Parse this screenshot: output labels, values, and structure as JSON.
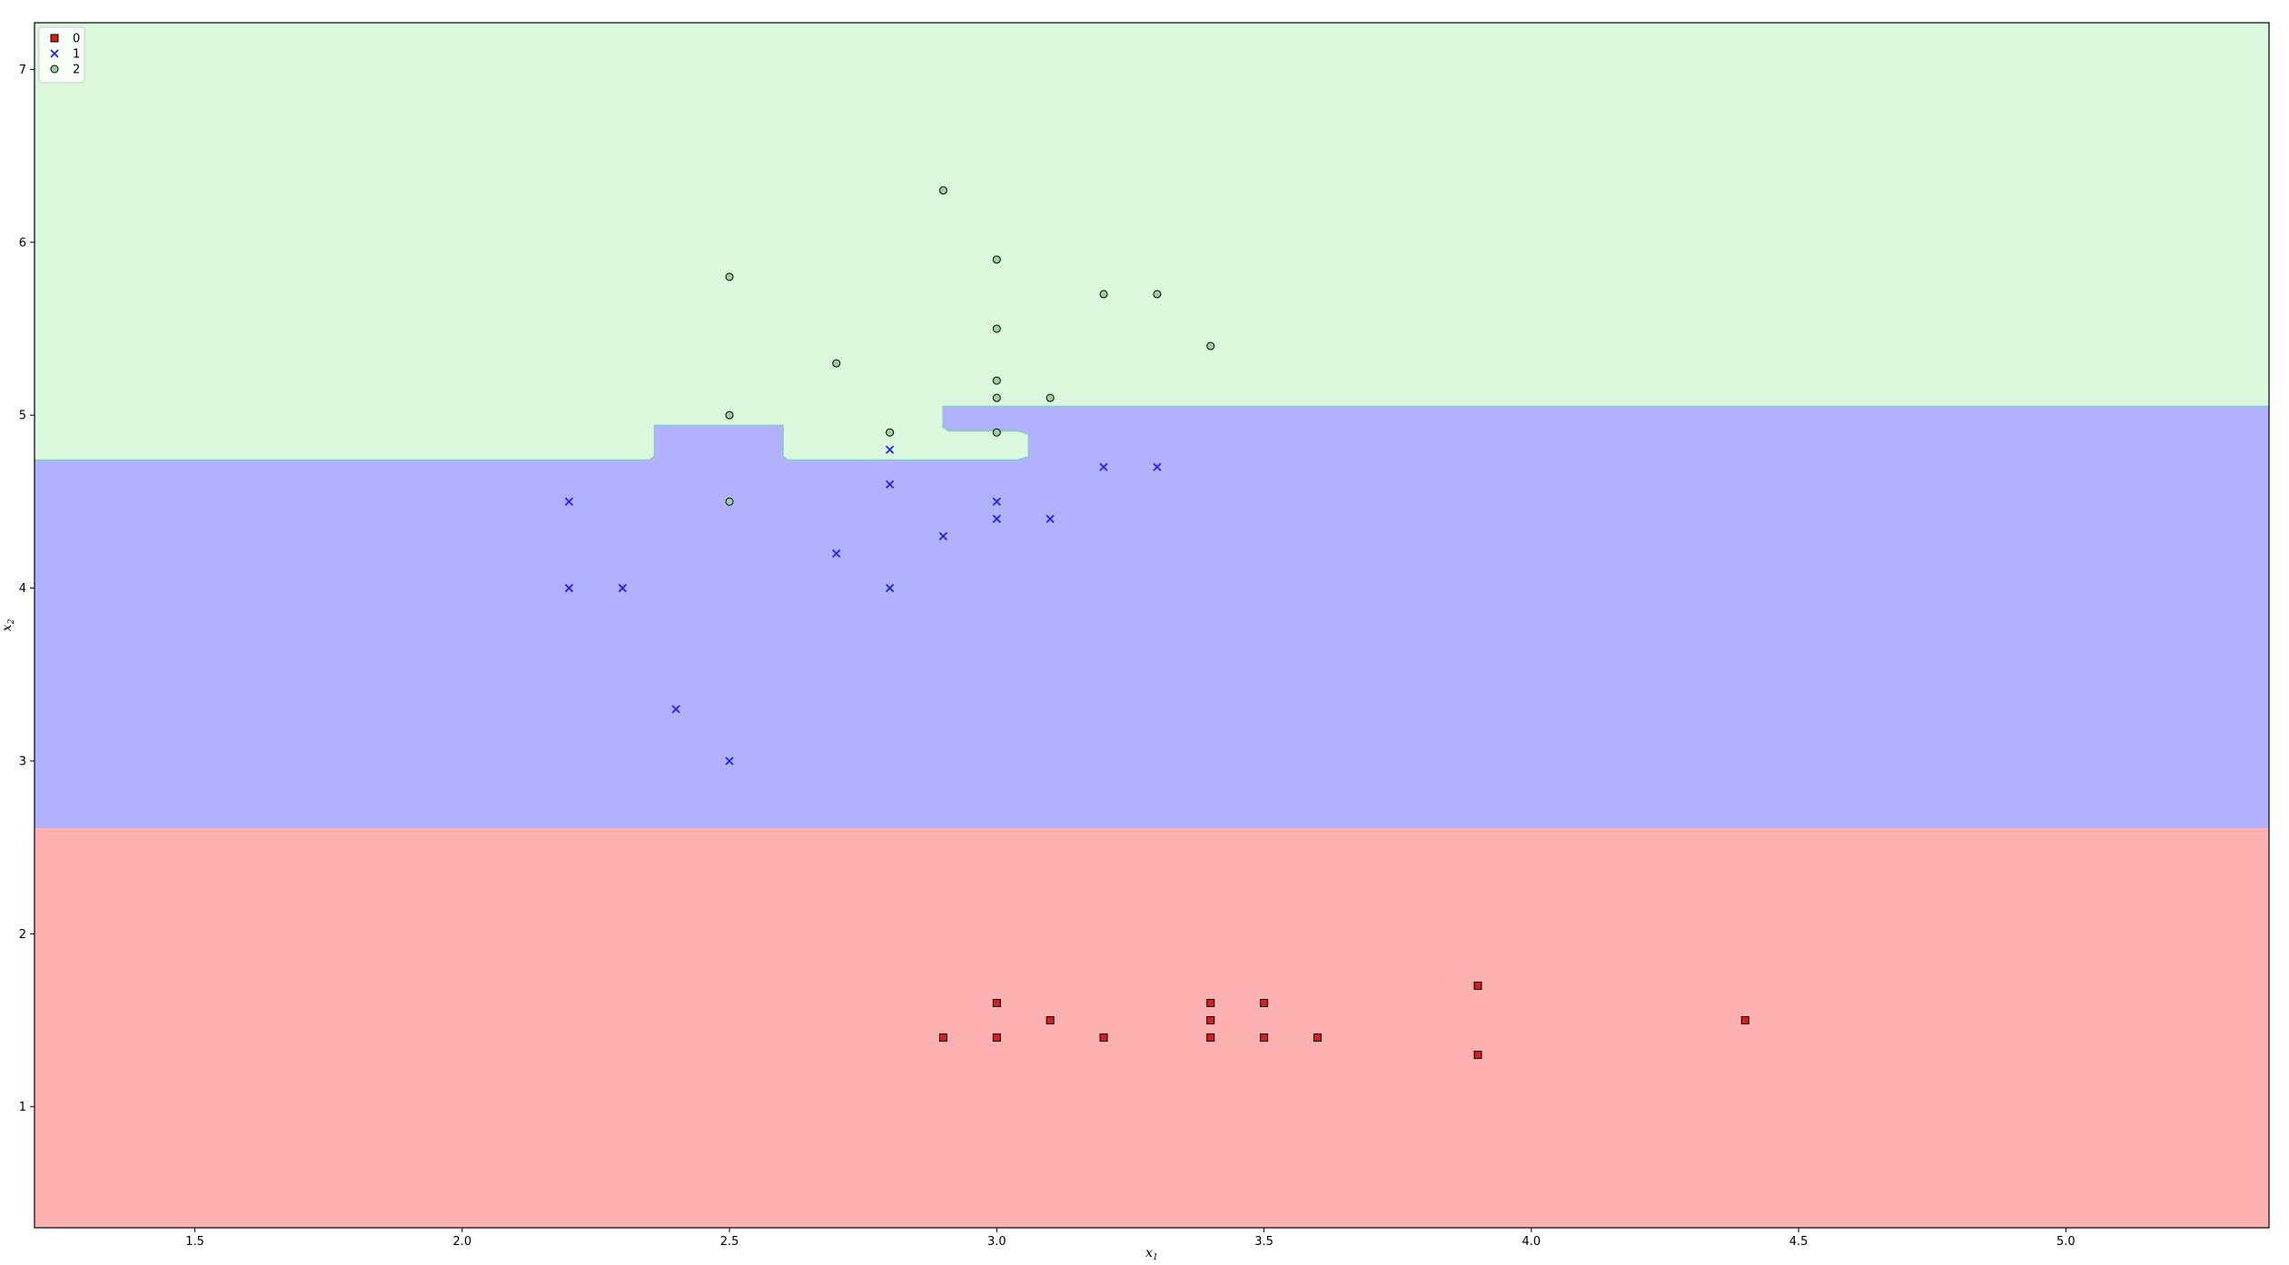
{
  "chart_data": {
    "type": "scatter",
    "title": "",
    "xlabel": "x",
    "xlabel_sub": "1",
    "ylabel": "x",
    "ylabel_sub": "2",
    "xlim": [
      1.2,
      5.38
    ],
    "ylim": [
      0.3,
      7.27
    ],
    "xticks": [
      1.5,
      2.0,
      2.5,
      3.0,
      3.5,
      4.0,
      4.5,
      5.0
    ],
    "xtick_labels": [
      "1.5",
      "2.0",
      "2.5",
      "3.0",
      "3.5",
      "4.0",
      "4.5",
      "5.0"
    ],
    "yticks": [
      1,
      2,
      3,
      4,
      5,
      6,
      7
    ],
    "ytick_labels": [
      "1",
      "2",
      "3",
      "4",
      "5",
      "6",
      "7"
    ],
    "grid": false,
    "legend_position": "top-left",
    "decision_regions": {
      "region_colors": {
        "0": "#ffb1b1",
        "1": "#b1b1ff",
        "2": "#dcf8dc"
      },
      "boundary_color": "#8fc9cf",
      "class0_upper": 2.61,
      "class1_boundary": [
        [
          1.2,
          4.74
        ],
        [
          2.35,
          4.74
        ],
        [
          2.36,
          4.76
        ],
        [
          2.36,
          4.94
        ],
        [
          2.6,
          4.94
        ],
        [
          2.6,
          4.76
        ],
        [
          2.61,
          4.74
        ],
        [
          3.04,
          4.74
        ],
        [
          3.06,
          4.76
        ],
        [
          3.06,
          4.89
        ],
        [
          3.04,
          4.91
        ],
        [
          2.91,
          4.91
        ],
        [
          2.9,
          4.93
        ],
        [
          2.9,
          5.05
        ],
        [
          5.38,
          5.05
        ]
      ]
    },
    "series": [
      {
        "name": "0",
        "marker": "square",
        "color": "#d62020",
        "points": [
          [
            2.9,
            1.4
          ],
          [
            3.0,
            1.4
          ],
          [
            3.0,
            1.6
          ],
          [
            3.1,
            1.5
          ],
          [
            3.2,
            1.4
          ],
          [
            3.4,
            1.4
          ],
          [
            3.4,
            1.5
          ],
          [
            3.4,
            1.6
          ],
          [
            3.5,
            1.4
          ],
          [
            3.5,
            1.6
          ],
          [
            3.6,
            1.4
          ],
          [
            3.9,
            1.3
          ],
          [
            3.9,
            1.7
          ],
          [
            4.4,
            1.5
          ]
        ]
      },
      {
        "name": "1",
        "marker": "x",
        "color": "#2222ee",
        "points": [
          [
            2.2,
            4.5
          ],
          [
            2.2,
            4.0
          ],
          [
            2.3,
            4.0
          ],
          [
            2.4,
            3.3
          ],
          [
            2.5,
            3.0
          ],
          [
            2.7,
            4.2
          ],
          [
            2.8,
            4.8
          ],
          [
            2.8,
            4.6
          ],
          [
            2.8,
            4.0
          ],
          [
            2.9,
            4.3
          ],
          [
            3.0,
            4.5
          ],
          [
            3.0,
            4.4
          ],
          [
            3.1,
            4.4
          ],
          [
            3.2,
            4.7
          ],
          [
            3.3,
            4.7
          ]
        ]
      },
      {
        "name": "2",
        "marker": "circle",
        "color": "#9ad39a",
        "points": [
          [
            2.9,
            6.3
          ],
          [
            2.5,
            5.8
          ],
          [
            3.0,
            5.9
          ],
          [
            3.2,
            5.7
          ],
          [
            3.3,
            5.7
          ],
          [
            3.0,
            5.5
          ],
          [
            3.4,
            5.4
          ],
          [
            2.7,
            5.3
          ],
          [
            3.0,
            5.2
          ],
          [
            3.0,
            5.1
          ],
          [
            3.1,
            5.1
          ],
          [
            2.5,
            5.0
          ],
          [
            2.8,
            4.9
          ],
          [
            3.0,
            4.9
          ],
          [
            2.5,
            4.5
          ]
        ]
      }
    ]
  }
}
